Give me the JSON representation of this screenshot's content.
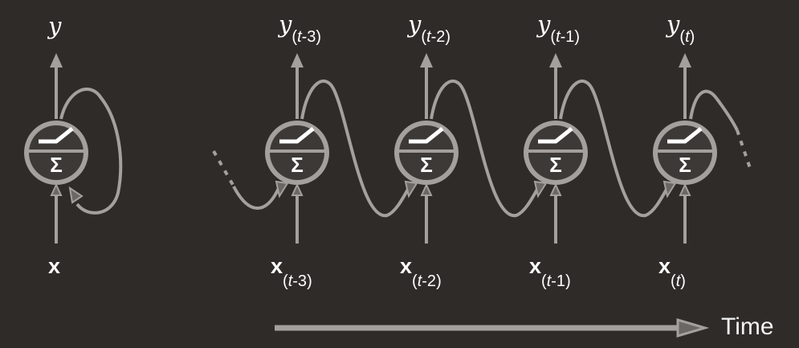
{
  "folded": {
    "output_label": "y",
    "input_label": "x"
  },
  "unrolled": {
    "steps": [
      {
        "out_var": "y",
        "in_var": "x",
        "open": "(",
        "t": "t",
        "offset": "-3",
        "close": ")"
      },
      {
        "out_var": "y",
        "in_var": "x",
        "open": "(",
        "t": "t",
        "offset": "-2",
        "close": ")"
      },
      {
        "out_var": "y",
        "in_var": "x",
        "open": "(",
        "t": "t",
        "offset": "-1",
        "close": ")"
      },
      {
        "out_var": "y",
        "in_var": "x",
        "open": "(",
        "t": "t",
        "offset": "",
        "close": ")"
      }
    ]
  },
  "time_axis": {
    "label": "Time"
  },
  "neuron_symbol": "Σ",
  "colors": {
    "background": "#2f2b28",
    "stroke": "#a3a09d",
    "neuron_fill": "#3d3936",
    "text": "#ffffff"
  },
  "icons": {
    "neuron": "neuron-sum-step-icon",
    "arrow": "arrow-head-icon"
  }
}
